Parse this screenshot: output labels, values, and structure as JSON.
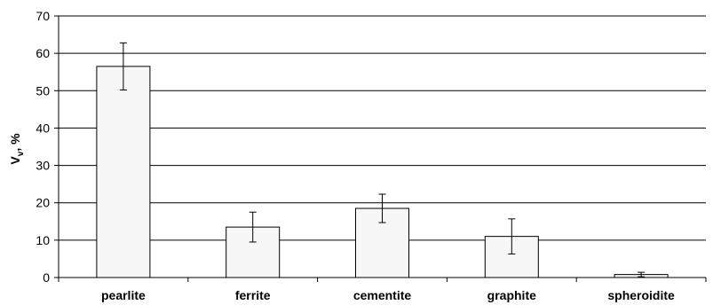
{
  "chart_data": {
    "type": "bar",
    "categories": [
      "pearlite",
      "ferrite",
      "cementite",
      "graphite",
      "spheroidite"
    ],
    "values": [
      56.5,
      13.5,
      18.5,
      11.0,
      0.8
    ],
    "errors": [
      6.3,
      4.0,
      3.8,
      4.7,
      0.6
    ],
    "ylabel_main": "V",
    "ylabel_sub": "v",
    "ylabel_rest": ", %",
    "ylim": [
      0,
      70
    ],
    "yticks": [
      0,
      10,
      20,
      30,
      40,
      50,
      60,
      70
    ],
    "grid": true,
    "legend": "none",
    "bar_fill": "#f7f7f7",
    "bar_stroke": "#000000",
    "grid_color": "#000000"
  }
}
